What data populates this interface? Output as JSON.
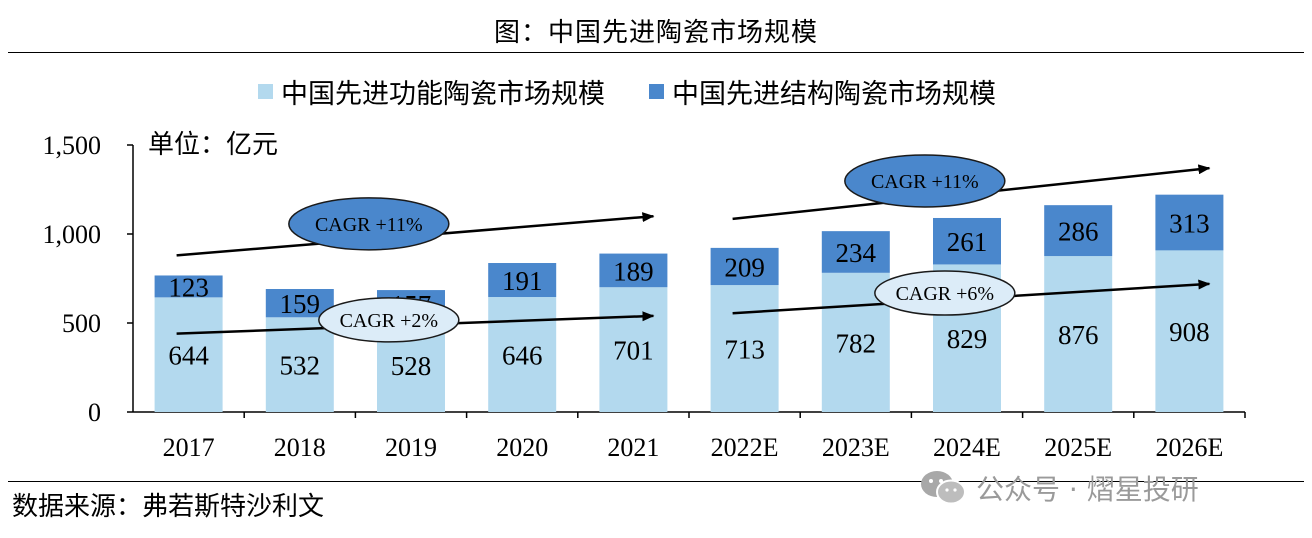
{
  "title": "图：中国先进陶瓷市场规模",
  "unit_label": "单位：亿元",
  "source": "数据来源：弗若斯特沙利文",
  "watermark": "公众号 · 熠星投研",
  "colors": {
    "functional": "#b3d9ee",
    "structural": "#4a87cc",
    "ellipse_dark": "#4a87cc",
    "ellipse_light": "#dcecf8"
  },
  "chart_data": {
    "type": "bar",
    "stacked": true,
    "categories": [
      "2017",
      "2018",
      "2019",
      "2020",
      "2021",
      "2022E",
      "2023E",
      "2024E",
      "2025E",
      "2026E"
    ],
    "series": [
      {
        "name": "中国先进功能陶瓷市场规模",
        "values": [
          644,
          532,
          528,
          646,
          701,
          713,
          782,
          829,
          876,
          908
        ]
      },
      {
        "name": "中国先进结构陶瓷市场规模",
        "values": [
          123,
          159,
          157,
          191,
          189,
          209,
          234,
          261,
          286,
          313
        ]
      }
    ],
    "ylim": [
      0,
      1500
    ],
    "yticks": [
      0,
      500,
      1000,
      1500
    ],
    "ytick_labels": [
      "0",
      "500",
      "1,000",
      "1,500"
    ],
    "legend": "top",
    "annotations": [
      {
        "text": "CAGR +11%",
        "style": "dark",
        "from": [
          "2017",
          880
        ],
        "to": [
          "2021",
          1100
        ]
      },
      {
        "text": "CAGR +2%",
        "style": "light",
        "from": [
          "2017",
          440
        ],
        "to": [
          "2021",
          540
        ]
      },
      {
        "text": "CAGR +11%",
        "style": "dark",
        "from": [
          "2022E",
          1085
        ],
        "to": [
          "2026E",
          1370
        ]
      },
      {
        "text": "CAGR +6%",
        "style": "light",
        "from": [
          "2022E",
          555
        ],
        "to": [
          "2026E",
          720
        ]
      }
    ]
  }
}
